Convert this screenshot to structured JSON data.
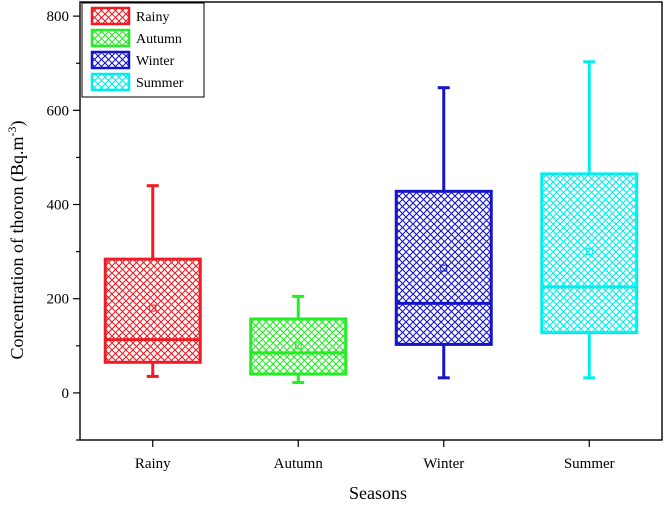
{
  "chart_data": {
    "type": "box",
    "xlabel": "Seasons",
    "ylabel": "Concentration of thoron (Bq.m",
    "ylabel_sup": "-3",
    "ylabel_close": ")",
    "ylim": [
      -100,
      830
    ],
    "yticks": [
      0,
      200,
      400,
      600,
      800
    ],
    "categories": [
      "Rainy",
      "Autumn",
      "Winter",
      "Summer"
    ],
    "series": [
      {
        "name": "Rainy",
        "color": "#ee1c24",
        "min": 35,
        "q1": 65,
        "median": 113,
        "q3": 284,
        "max": 440,
        "mean": 180
      },
      {
        "name": "Autumn",
        "color": "#22ee22",
        "min": 22,
        "q1": 40,
        "median": 85,
        "q3": 157,
        "max": 205,
        "mean": 100
      },
      {
        "name": "Winter",
        "color": "#1414c8",
        "min": 32,
        "q1": 103,
        "median": 190,
        "q3": 428,
        "max": 648,
        "mean": 265
      },
      {
        "name": "Summer",
        "color": "#00eeee",
        "min": 32,
        "q1": 128,
        "median": 225,
        "q3": 465,
        "max": 703,
        "mean": 300
      }
    ],
    "legend": [
      "Rainy",
      "Autumn",
      "Winter",
      "Summer"
    ],
    "legend_position": "top-left"
  }
}
